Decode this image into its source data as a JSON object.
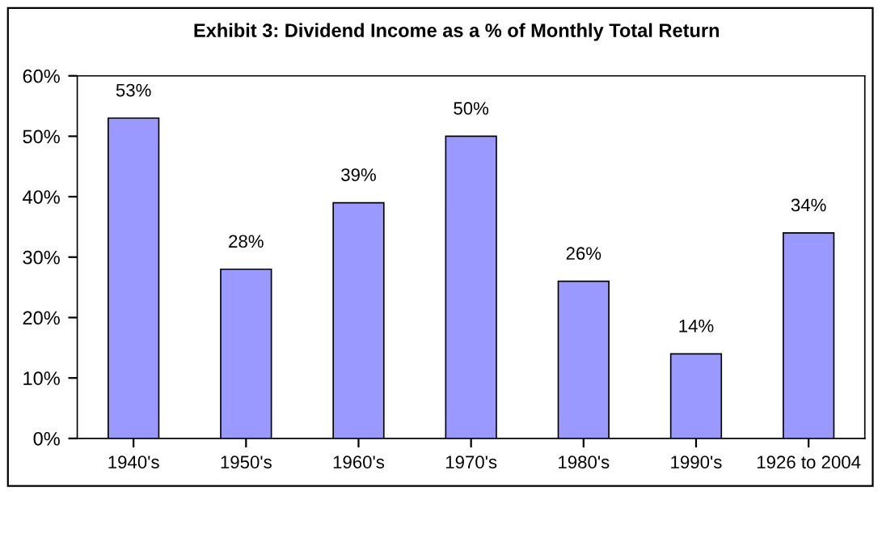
{
  "chart_data": {
    "type": "bar",
    "title": "Exhibit 3: Dividend Income as a % of Monthly Total Return",
    "categories": [
      "1940's",
      "1950's",
      "1960's",
      "1970's",
      "1980's",
      "1990's",
      "1926 to 2004"
    ],
    "values": [
      53,
      28,
      39,
      50,
      26,
      14,
      34
    ],
    "value_labels": [
      "53%",
      "28%",
      "39%",
      "50%",
      "26%",
      "14%",
      "34%"
    ],
    "color": "#9999ff",
    "ylim": [
      0,
      60
    ],
    "yticks": [
      {
        "value": 0,
        "label": "0%"
      },
      {
        "value": 10,
        "label": "10%"
      },
      {
        "value": 20,
        "label": "20%"
      },
      {
        "value": 30,
        "label": "30%"
      },
      {
        "value": 40,
        "label": "40%"
      },
      {
        "value": 50,
        "label": "50%"
      },
      {
        "value": 60,
        "label": "60%"
      }
    ],
    "grid": false,
    "legend": false
  }
}
